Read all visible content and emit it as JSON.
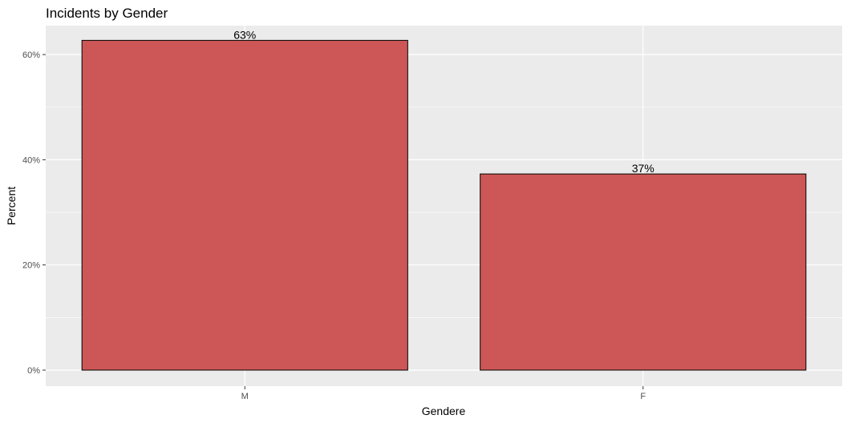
{
  "chart_data": {
    "type": "bar",
    "title": "Incidents by Gender",
    "xlabel": "Gendere",
    "ylabel": "Percent",
    "categories": [
      "M",
      "F"
    ],
    "values": [
      62.7,
      37.3
    ],
    "data_labels": [
      "63%",
      "37%"
    ],
    "ylim": [
      0,
      65.5
    ],
    "y_ticks": [
      0,
      20,
      40,
      60
    ],
    "y_tick_labels": [
      "0%",
      "20%",
      "40%",
      "60%"
    ],
    "grid": true,
    "legend": "none",
    "colors": {
      "bar_fill": "#cd5757",
      "bar_stroke": "#000000",
      "panel_bg": "#ebebeb",
      "grid_major": "#ffffff",
      "tick_text": "#4d4d4d"
    }
  }
}
